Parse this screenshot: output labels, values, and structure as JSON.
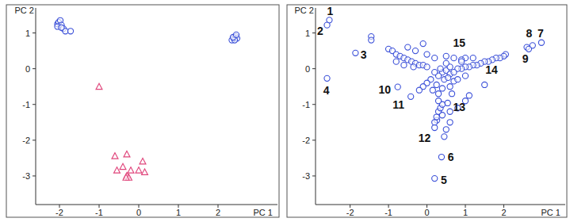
{
  "chart_data": [
    {
      "type": "scatter",
      "x_label": "PC 1",
      "y_label": "PC 2",
      "xlim": [
        -2.6,
        3.5
      ],
      "ylim": [
        -3.8,
        1.7
      ],
      "xticks": [
        -2,
        -1,
        0,
        1,
        2
      ],
      "yticks": [
        -3,
        -2,
        -1,
        0,
        1
      ],
      "series": [
        {
          "color": "#3a4fd8",
          "marker": "circle",
          "x": [
            -2.05,
            -2.02,
            -1.98,
            -1.95,
            -2.05,
            -1.9,
            -1.85,
            -1.72,
            -1.95,
            2.35,
            2.4,
            2.45,
            2.48,
            2.42,
            2.38,
            2.46
          ],
          "values": [
            1.25,
            1.3,
            1.35,
            1.22,
            1.18,
            1.12,
            1.05,
            1.05,
            1.15,
            0.8,
            0.85,
            0.9,
            0.85,
            0.8,
            0.88,
            0.95
          ]
        },
        {
          "color": "#e0457b",
          "marker": "triangle",
          "x": [
            -1.0,
            -0.6,
            -0.55,
            -0.4,
            -0.3,
            -0.3,
            -0.25,
            -0.2,
            0.0,
            0.1,
            0.15,
            -0.32
          ],
          "values": [
            -0.51,
            -2.45,
            -2.85,
            -2.75,
            -2.4,
            -3.0,
            -3.05,
            -2.85,
            -2.85,
            -2.6,
            -2.9,
            -3.05
          ]
        }
      ]
    },
    {
      "type": "scatter",
      "x_label": "PC 1",
      "y_label": "PC 2",
      "xlim": [
        -2.9,
        3.6
      ],
      "ylim": [
        -3.8,
        1.7
      ],
      "xticks": [
        -2,
        -1,
        0,
        1,
        2
      ],
      "yticks": [
        -3,
        -2,
        -1,
        0,
        1
      ],
      "series": [
        {
          "color": "#3a4fd8",
          "marker": "circle",
          "x": [
            -2.54,
            -2.6,
            -1.86,
            -1.45,
            -1.45,
            -1.0,
            -0.9,
            -0.8,
            -0.7,
            -0.6,
            -0.5,
            -0.4,
            -0.3,
            -0.2,
            -0.1,
            0.0,
            -0.6,
            -0.8,
            -0.35,
            -2.6,
            2.98,
            2.75,
            2.6,
            2.65,
            2.05,
            2.0,
            1.9,
            1.8,
            1.7,
            1.6,
            1.5,
            1.4,
            1.3,
            1.2,
            1.1,
            1.0,
            0.9,
            0.8,
            1.5,
            1.2,
            1.0,
            0.9,
            0.4,
            0.5,
            0.6,
            0.3,
            0.45,
            0.55,
            0.7,
            0.2,
            0.35,
            0.6,
            0.1,
            0.0,
            -0.1,
            -0.2,
            0.25,
            0.15,
            0.3,
            0.4,
            0.6,
            0.65,
            0.7,
            0.8,
            0.5,
            0.7,
            0.9,
            1.0,
            0.2,
            0.0,
            -0.3,
            -0.5,
            -0.1,
            0.5,
            -0.76,
            -0.42,
            0.26,
            0.2,
            0.25,
            0.3,
            0.35,
            0.4,
            0.3,
            0.54,
            0.38,
            0.2,
            0.5,
            0.45,
            0.4,
            0.2,
            0.6,
            0.6,
            0.8,
            1.0,
            1.1
          ],
          "values": [
            1.36,
            1.22,
            0.44,
            0.9,
            0.8,
            0.55,
            0.5,
            0.4,
            0.35,
            0.3,
            0.25,
            0.2,
            0.15,
            0.1,
            0.1,
            0.05,
            0.1,
            0.2,
            0.05,
            -0.27,
            0.73,
            0.65,
            0.6,
            0.55,
            0.4,
            0.35,
            0.3,
            0.3,
            0.25,
            0.2,
            0.2,
            0.15,
            0.1,
            0.1,
            0.05,
            0.05,
            0.0,
            0.0,
            -0.45,
            0.3,
            0.3,
            0.25,
            -0.1,
            -0.05,
            -0.15,
            -0.2,
            -0.3,
            -0.25,
            -0.1,
            -0.1,
            0.0,
            0.05,
            -0.3,
            -0.4,
            -0.5,
            -0.6,
            -0.45,
            -0.6,
            -0.7,
            -0.55,
            -0.5,
            -0.7,
            -0.35,
            -0.3,
            0.15,
            0.3,
            0.2,
            -0.2,
            0.3,
            0.4,
            0.5,
            0.6,
            0.7,
            0.35,
            -0.51,
            -0.78,
            -1.44,
            -1.5,
            -1.35,
            -1.2,
            -1.1,
            -1.0,
            -0.9,
            -0.96,
            -2.47,
            -3.07,
            -1.7,
            -1.9,
            -1.3,
            -1.65,
            -1.5,
            -1.2,
            -1.1,
            -0.9,
            -0.75
          ]
        }
      ],
      "annotations": [
        {
          "text": "1",
          "x": -2.52,
          "y": 1.62
        },
        {
          "text": "2",
          "x": -2.78,
          "y": 1.05
        },
        {
          "text": "3",
          "x": -1.65,
          "y": 0.4
        },
        {
          "text": "4",
          "x": -2.62,
          "y": -0.6
        },
        {
          "text": "5",
          "x": 0.44,
          "y": -3.11
        },
        {
          "text": "6",
          "x": 0.62,
          "y": -2.47
        },
        {
          "text": "7",
          "x": 2.96,
          "y": 0.98
        },
        {
          "text": "8",
          "x": 2.66,
          "y": 0.98
        },
        {
          "text": "9",
          "x": 2.56,
          "y": 0.29
        },
        {
          "text": "10",
          "x": -1.1,
          "y": -0.58
        },
        {
          "text": "11",
          "x": -0.74,
          "y": -1.0
        },
        {
          "text": "12",
          "x": -0.06,
          "y": -1.93
        },
        {
          "text": "13",
          "x": 0.84,
          "y": -1.07
        },
        {
          "text": "14",
          "x": 1.68,
          "y": -0.04
        },
        {
          "text": "15",
          "x": 0.84,
          "y": 0.73
        }
      ]
    }
  ]
}
